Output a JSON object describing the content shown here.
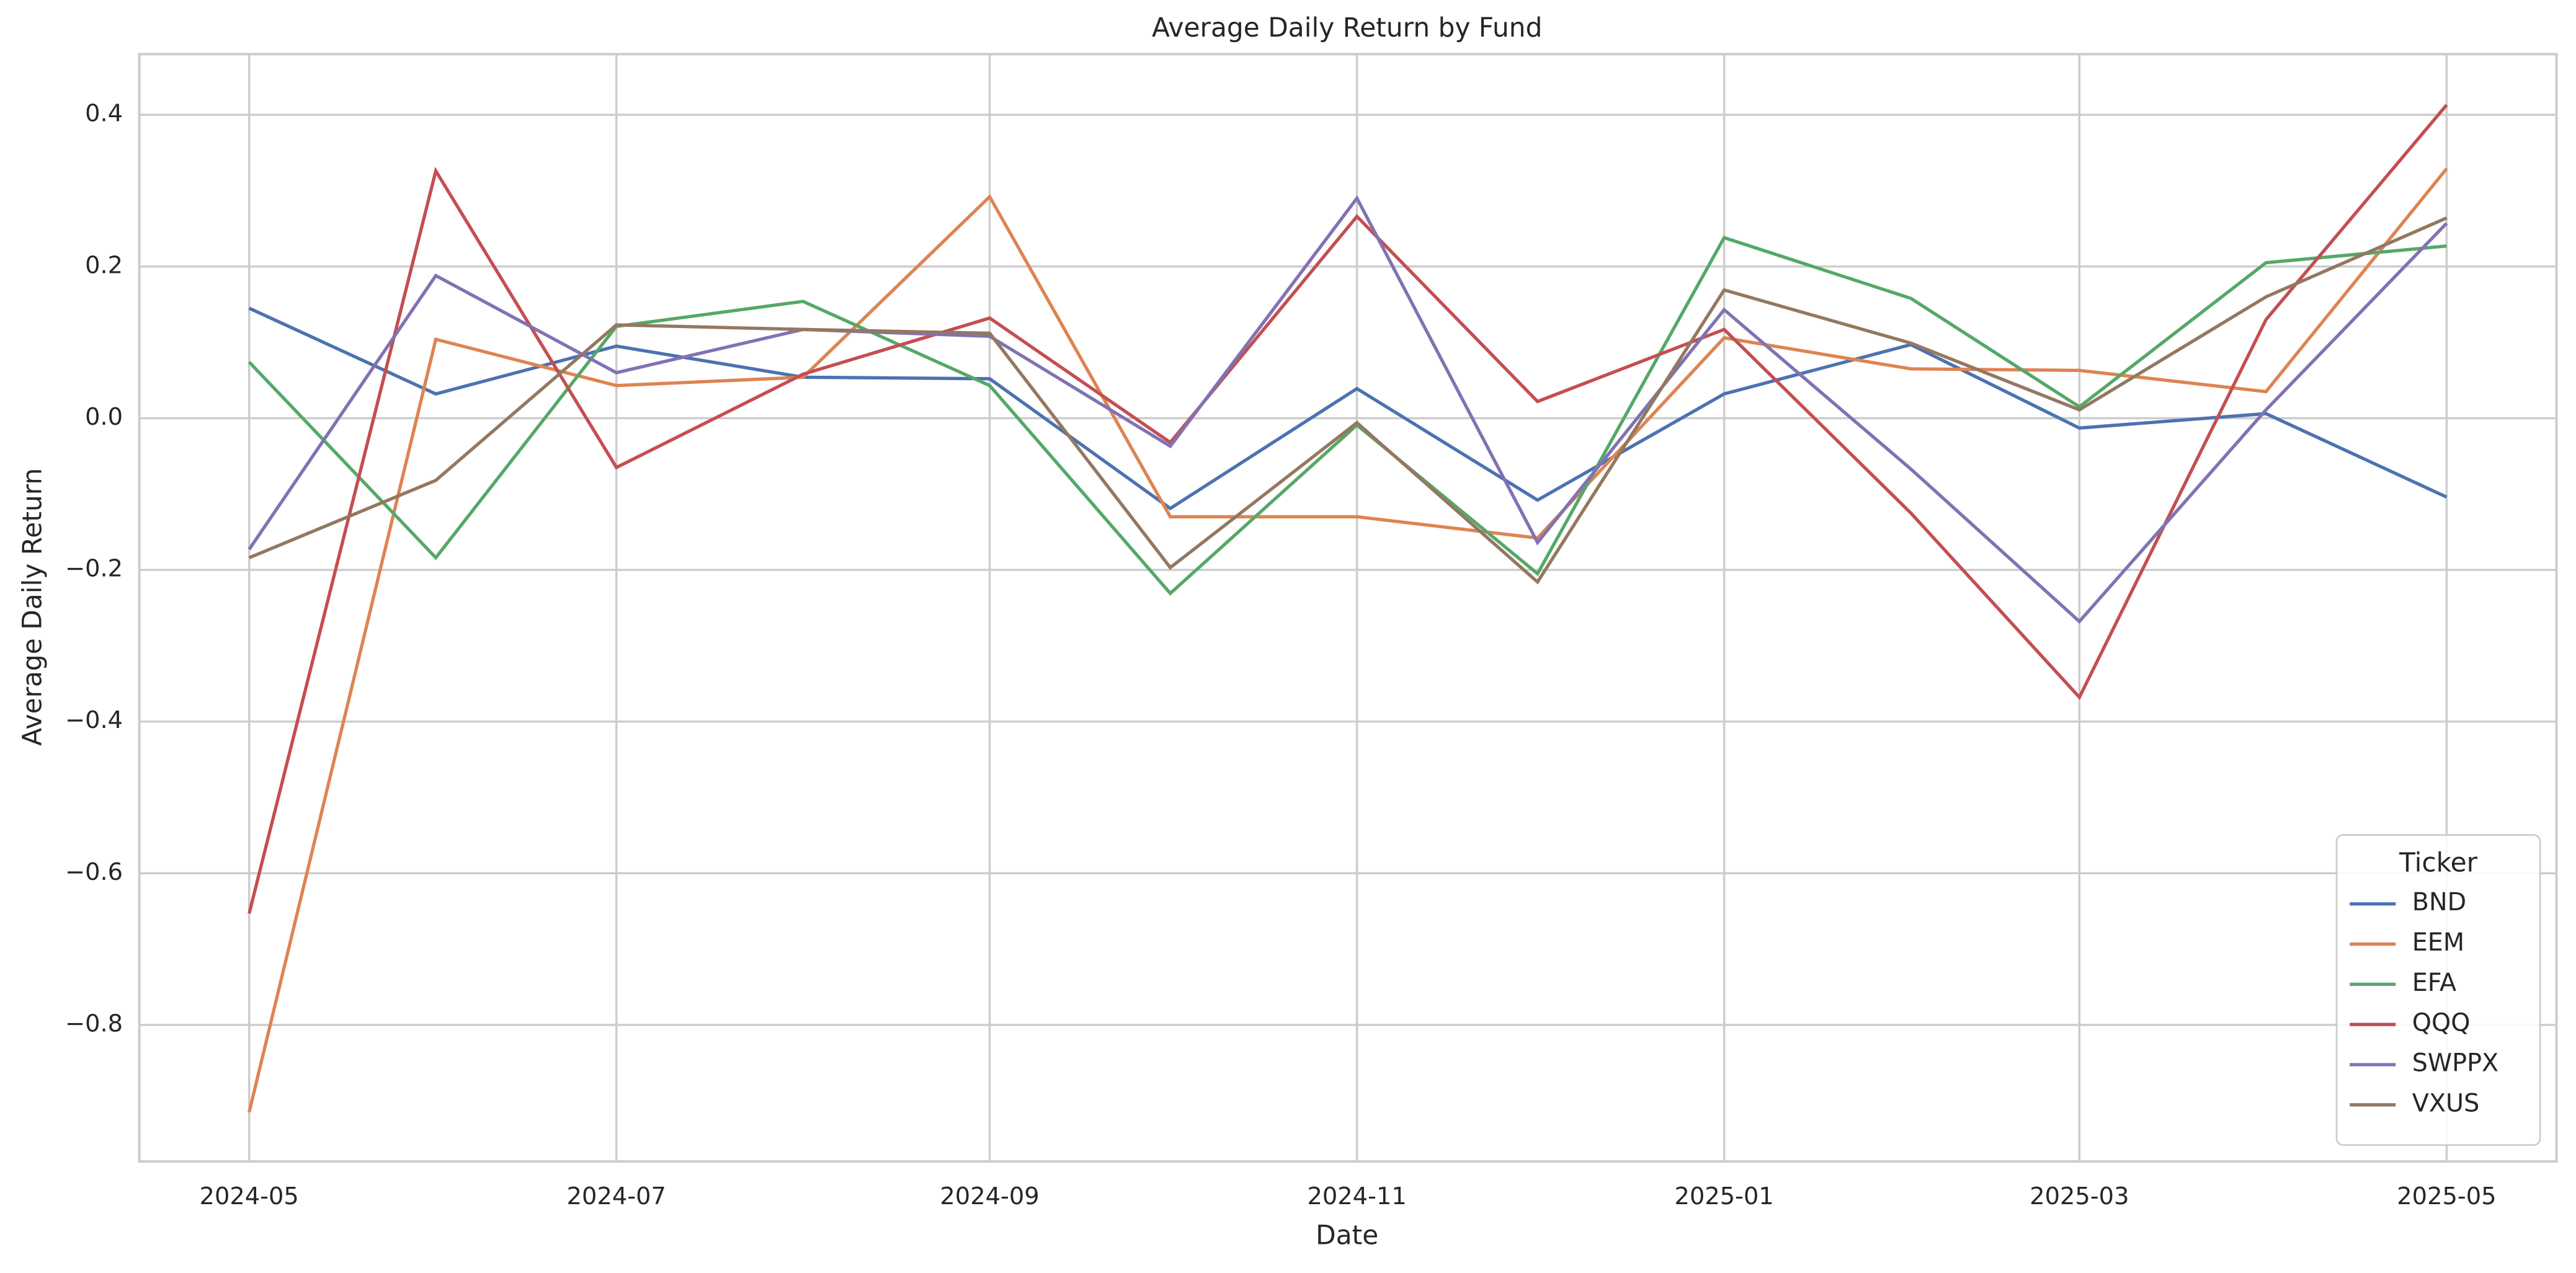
{
  "chart_data": {
    "type": "line",
    "title": "Average Daily Return by Fund",
    "x_label": "Date",
    "y_label": "Average Daily Return",
    "x": [
      "2024-05",
      "2024-06",
      "2024-07",
      "2024-08",
      "2024-09",
      "2024-10",
      "2024-11",
      "2024-12",
      "2025-01",
      "2025-02",
      "2025-03",
      "2025-04",
      "2025-05"
    ],
    "xticks": [
      "2024-05",
      "2024-07",
      "2024-09",
      "2024-11",
      "2025-01",
      "2025-03",
      "2025-05"
    ],
    "ylim": [
      -0.98,
      0.48
    ],
    "yticks": [
      {
        "value": -0.8,
        "label": "−0.8"
      },
      {
        "value": -0.6,
        "label": "−0.6"
      },
      {
        "value": -0.4,
        "label": "−0.4"
      },
      {
        "value": -0.2,
        "label": "−0.2"
      },
      {
        "value": 0,
        "label": "0.0"
      },
      0.2,
      0.4
    ],
    "grid": true,
    "legend_title": "Ticker",
    "legend_position": "lower right",
    "series": [
      {
        "name": "BND",
        "color": "#4c72b0",
        "values": [
          0.145,
          0.032,
          0.095,
          0.054,
          0.052,
          -0.119,
          0.039,
          -0.108,
          0.032,
          0.097,
          -0.013,
          0.006,
          -0.104
        ]
      },
      {
        "name": "EEM",
        "color": "#dd8452",
        "values": [
          -0.915,
          0.104,
          0.043,
          0.054,
          0.292,
          -0.13,
          -0.13,
          -0.158,
          0.106,
          0.065,
          0.063,
          0.035,
          0.329
        ]
      },
      {
        "name": "EFA",
        "color": "#55a868",
        "values": [
          0.074,
          -0.184,
          0.121,
          0.154,
          0.043,
          -0.231,
          -0.009,
          -0.205,
          0.238,
          0.158,
          0.015,
          0.205,
          0.227
        ]
      },
      {
        "name": "QQQ",
        "color": "#c44e52",
        "values": [
          -0.653,
          0.326,
          -0.065,
          0.058,
          0.132,
          -0.032,
          0.266,
          0.022,
          0.117,
          -0.125,
          -0.368,
          0.13,
          0.413
        ]
      },
      {
        "name": "SWPPX",
        "color": "#8172b3",
        "values": [
          -0.173,
          0.188,
          0.06,
          0.117,
          0.108,
          -0.037,
          0.29,
          -0.164,
          0.143,
          -0.067,
          -0.268,
          0.011,
          0.257
        ]
      },
      {
        "name": "VXUS",
        "color": "#937860",
        "values": [
          -0.184,
          -0.082,
          0.123,
          0.117,
          0.112,
          -0.197,
          -0.006,
          -0.216,
          0.169,
          0.099,
          0.011,
          0.16,
          0.264
        ]
      }
    ]
  }
}
